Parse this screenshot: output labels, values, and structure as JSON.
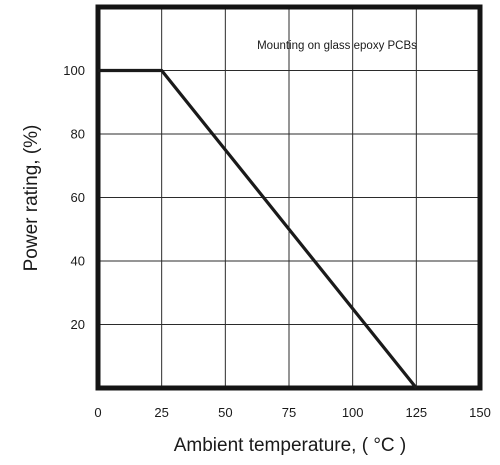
{
  "chart_data": {
    "type": "line",
    "title": "",
    "xlabel": "Ambient temperature, ( °C )",
    "ylabel": "Power rating, (%)",
    "xlim": [
      0,
      150
    ],
    "ylim": [
      0,
      120
    ],
    "x_ticks": [
      0,
      25,
      50,
      75,
      100,
      125,
      150
    ],
    "y_ticks": [
      20,
      40,
      60,
      80,
      100
    ],
    "grid": true,
    "annotation": "Mounting on glass epoxy PCBs",
    "series": [
      {
        "x": [
          0,
          25,
          125
        ],
        "y": [
          100,
          100,
          0
        ]
      }
    ]
  }
}
